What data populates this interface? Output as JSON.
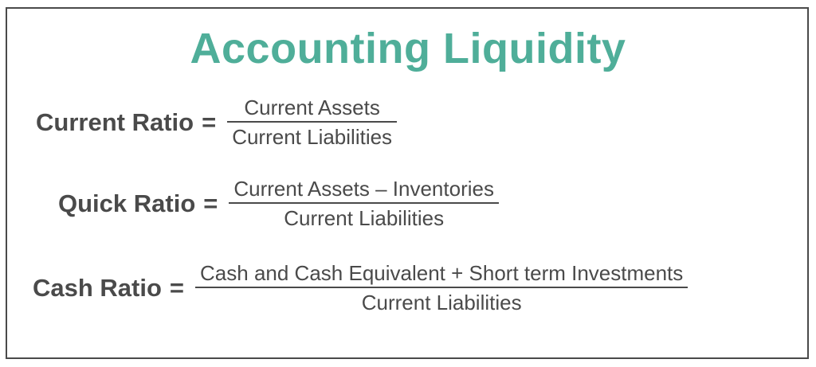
{
  "title": "Accounting Liquidity",
  "formulas": [
    {
      "name": "Current Ratio",
      "equals": "=",
      "numerator": "Current Assets",
      "denominator": "Current Liabilities"
    },
    {
      "name": "Quick Ratio",
      "equals": "=",
      "numerator": "Current Assets – Inventories",
      "denominator": "Current Liabilities"
    },
    {
      "name": "Cash Ratio",
      "equals": "=",
      "numerator": "Cash and Cash Equivalent + Short term Investments",
      "denominator": "Current Liabilities"
    }
  ],
  "colors": {
    "title": "#4fae99",
    "text": "#4a4a4a",
    "border": "#4a4a4a"
  }
}
